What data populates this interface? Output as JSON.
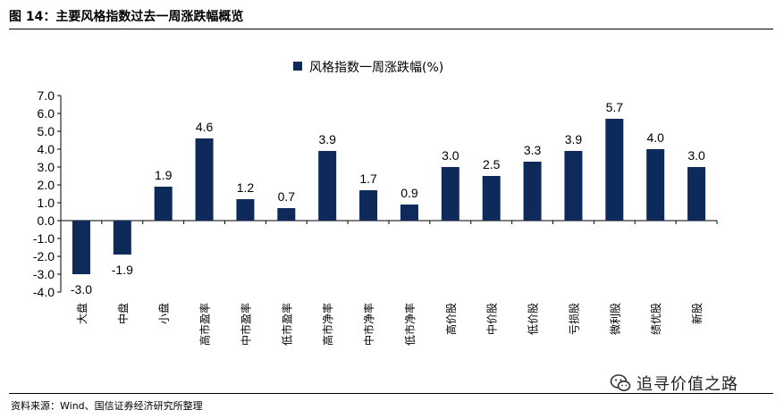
{
  "figure": {
    "title": "图 14：主要风格指数过去一周涨跌幅概览",
    "source": "资料来源：Wind、国信证券经济研究所整理",
    "watermark": "追寻价值之路"
  },
  "chart_data": {
    "type": "bar",
    "title": "",
    "xlabel": "",
    "ylabel": "",
    "categories": [
      "大盘",
      "中盘",
      "小盘",
      "高市盈率",
      "中市盈率",
      "低市盈率",
      "高市净率",
      "中市净率",
      "低市净率",
      "高价股",
      "中价股",
      "低价股",
      "亏损股",
      "微利股",
      "绩优股",
      "新股"
    ],
    "series": [
      {
        "name": "风格指数一周涨跌幅(%)",
        "values": [
          -3.0,
          -1.9,
          1.9,
          4.6,
          1.2,
          0.7,
          3.9,
          1.7,
          0.9,
          3.0,
          2.5,
          3.3,
          3.9,
          5.7,
          4.0,
          3.0
        ]
      }
    ],
    "ylim": [
      -4.0,
      7.0
    ],
    "yticks": [
      -4.0,
      -3.0,
      -2.0,
      -1.0,
      0.0,
      1.0,
      2.0,
      3.0,
      4.0,
      5.0,
      6.0,
      7.0
    ],
    "grid": false,
    "legend_position": "top",
    "bar_color": "#0d2a5b",
    "data_label_precision": 1
  }
}
